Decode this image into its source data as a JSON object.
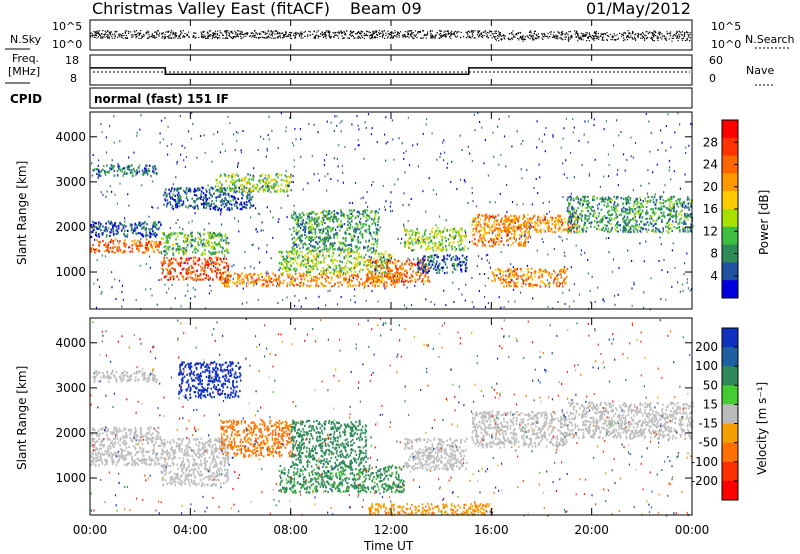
{
  "header": {
    "radar": "Christmas Valley East (fitACF)",
    "beam": "Beam 09",
    "date": "01/May/2012"
  },
  "noise_panel": {
    "left_label": "N.Sky",
    "right_label": "N.Search",
    "left_ticks": [
      "10^5",
      "10^0"
    ],
    "right_ticks": [
      "10^5",
      "10^0"
    ]
  },
  "freq_panel": {
    "left_label_line1": "Freq.",
    "left_label_line2": "[MHz]",
    "right_label": "Nave",
    "left_ticks": [
      "18",
      "8"
    ],
    "right_ticks": [
      "60",
      "0"
    ]
  },
  "cpid": {
    "label": "CPID",
    "value": "normal (fast) 151 IF"
  },
  "power_panel": {
    "ylabel": "Slant Range [km]",
    "yticks": [
      "4000",
      "3000",
      "2000",
      "1000"
    ],
    "colorbar_label": "Power [dB]",
    "colorbar_ticks": [
      "28",
      "24",
      "20",
      "16",
      "12",
      "8",
      "4"
    ],
    "colorbar_colors": [
      "#ff0000",
      "#ff3300",
      "#ff6600",
      "#ff9900",
      "#ffcc00",
      "#a8e000",
      "#3fbf3f",
      "#2e8b57",
      "#2050a0",
      "#0000dd"
    ]
  },
  "velocity_panel": {
    "ylabel": "Slant Range [km]",
    "yticks": [
      "4000",
      "3000",
      "2000",
      "1000"
    ],
    "colorbar_label": "Velocity [m s⁻¹]",
    "colorbar_ticks": [
      "200",
      "100",
      "50",
      "15",
      "-15",
      "-50",
      "-100",
      "-200"
    ],
    "colorbar_colors": [
      "#1030c0",
      "#2060a0",
      "#2e8b57",
      "#44cc33",
      "#bbbbbb",
      "#f5a000",
      "#ff7000",
      "#ff3000",
      "#ff0000"
    ]
  },
  "x_axis": {
    "label": "Time UT",
    "ticks": [
      "00:00",
      "04:00",
      "08:00",
      "12:00",
      "16:00",
      "20:00",
      "00:00"
    ]
  },
  "chart_data": {
    "type": "heatmap",
    "title": "Christmas Valley East (fitACF) Beam 09 01/May/2012",
    "xlabel": "Time UT",
    "ylabel": "Slant Range [km]",
    "xlim_hours": [
      0,
      24
    ],
    "ylim_km": [
      180,
      4550
    ],
    "grid": false,
    "frequency_mhz": [
      {
        "start_h": 0,
        "end_h": 3,
        "freq": 14
      },
      {
        "start_h": 3,
        "end_h": 15.1,
        "freq": 11
      },
      {
        "start_h": 15.1,
        "end_h": 24,
        "freq": 14
      }
    ],
    "power_regions": [
      {
        "t0": 0,
        "t1": 2.8,
        "r0": 1450,
        "r1": 1750,
        "power": 24
      },
      {
        "t0": 0,
        "t1": 2.8,
        "r0": 1800,
        "r1": 2150,
        "power": 6
      },
      {
        "t0": 0.1,
        "t1": 2.7,
        "r0": 3150,
        "r1": 3400,
        "power": 8
      },
      {
        "t0": 2.8,
        "t1": 5.5,
        "r0": 850,
        "r1": 1350,
        "power": 26
      },
      {
        "t0": 2.8,
        "t1": 5.5,
        "r0": 1400,
        "r1": 1900,
        "power": 12
      },
      {
        "t0": 2.9,
        "t1": 6.5,
        "r0": 2400,
        "r1": 2900,
        "power": 6
      },
      {
        "t0": 5.0,
        "t1": 8.0,
        "r0": 2800,
        "r1": 3200,
        "power": 14
      },
      {
        "t0": 5.2,
        "t1": 12.5,
        "r0": 700,
        "r1": 1000,
        "power": 22
      },
      {
        "t0": 7.5,
        "t1": 12.0,
        "r0": 1000,
        "r1": 1500,
        "power": 14
      },
      {
        "t0": 8.0,
        "t1": 11.5,
        "r0": 1500,
        "r1": 2400,
        "power": 10
      },
      {
        "t0": 11.0,
        "t1": 13.5,
        "r0": 800,
        "r1": 1300,
        "power": 24
      },
      {
        "t0": 13.0,
        "t1": 15.0,
        "r0": 1000,
        "r1": 1400,
        "power": 6
      },
      {
        "t0": 12.5,
        "t1": 15.0,
        "r0": 1500,
        "r1": 2000,
        "power": 14
      },
      {
        "t0": 15.2,
        "t1": 17.5,
        "r0": 1600,
        "r1": 2300,
        "power": 22
      },
      {
        "t0": 16.0,
        "t1": 19.0,
        "r0": 700,
        "r1": 1100,
        "power": 22
      },
      {
        "t0": 16.5,
        "t1": 19.5,
        "r0": 1900,
        "r1": 2300,
        "power": 22
      },
      {
        "t0": 19.0,
        "t1": 24.0,
        "r0": 1900,
        "r1": 2700,
        "power": 10
      }
    ],
    "velocity_regions": [
      {
        "t0": 0,
        "t1": 2.8,
        "r0": 1300,
        "r1": 2150,
        "vel": 0
      },
      {
        "t0": 0.1,
        "t1": 2.7,
        "r0": 3150,
        "r1": 3400,
        "vel": 0
      },
      {
        "t0": 2.8,
        "t1": 5.5,
        "r0": 850,
        "r1": 1900,
        "vel": 0
      },
      {
        "t0": 3.5,
        "t1": 6.0,
        "r0": 2800,
        "r1": 3600,
        "vel": 180
      },
      {
        "t0": 5.2,
        "t1": 8.0,
        "r0": 1500,
        "r1": 2300,
        "vel": -60
      },
      {
        "t0": 7.5,
        "t1": 12.5,
        "r0": 700,
        "r1": 1300,
        "vel": 40
      },
      {
        "t0": 8.0,
        "t1": 11.0,
        "r0": 1300,
        "r1": 2300,
        "vel": 45
      },
      {
        "t0": 11.0,
        "t1": 16.0,
        "r0": 200,
        "r1": 450,
        "vel": -40
      },
      {
        "t0": 12.5,
        "t1": 15.0,
        "r0": 1200,
        "r1": 1900,
        "vel": 0
      },
      {
        "t0": 15.2,
        "t1": 19.0,
        "r0": 1700,
        "r1": 2500,
        "vel": 0
      },
      {
        "t0": 19.0,
        "t1": 24.0,
        "r0": 1900,
        "r1": 2700,
        "vel": 0
      }
    ]
  }
}
